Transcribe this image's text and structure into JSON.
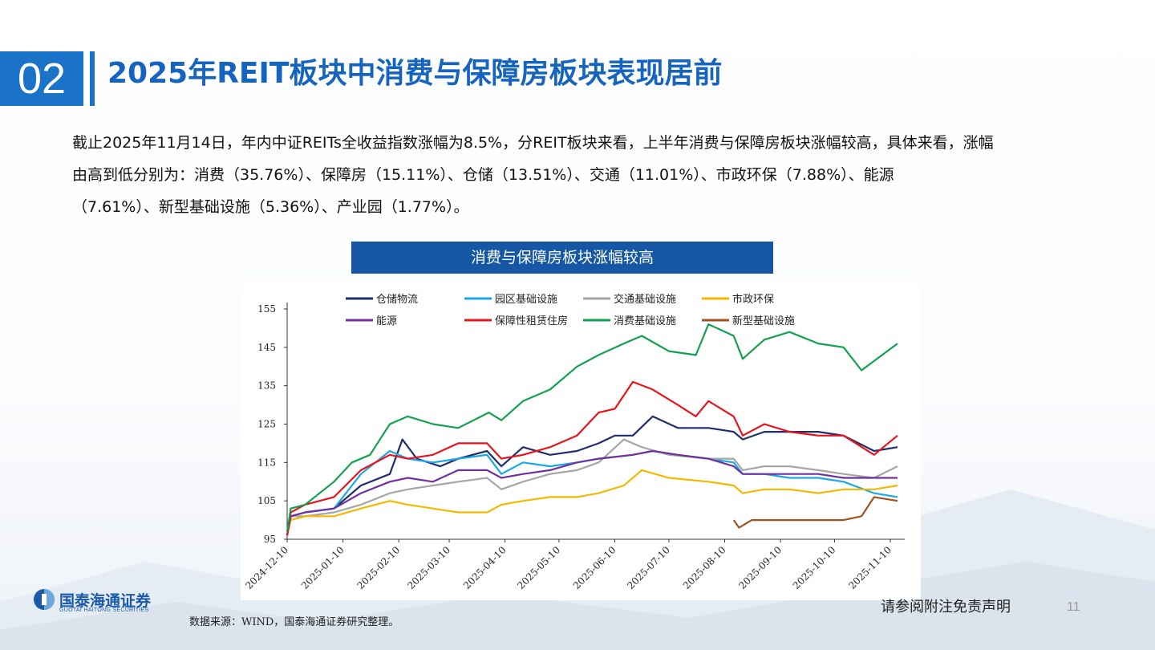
{
  "header": {
    "section_number": "02",
    "title": "2025年REIT板块中消费与保障房板块表现居前"
  },
  "paragraph": {
    "line1": "截止2025年11月14日，年内中证REITs全收益指数涨幅为8.5%，分REIT板块来看，上半年消费与保障房板块涨幅较高，具体来看，涨幅",
    "line2": "由高到低分别为：消费（35.76%）、保障房（15.11%）、仓储（13.51%）、交通（11.01%）、市政环保（7.88%）、能源",
    "line3": "（7.61%）、新型基础设施（5.36%）、产业园（1.77%）。"
  },
  "chart_banner": "消费与保障房板块涨幅较高",
  "footer": {
    "source": "数据来源：WIND，国泰海通证券研究整理。",
    "disclaimer": "请参阅附注免责声明",
    "page_number": "11",
    "logo_name": "国泰海通证券",
    "logo_sub": "GUOTAI HAITONG SECURITIES"
  },
  "colors": {
    "brand_blue": "#1a73c8",
    "title_blue": "#1565c0",
    "banner_blue": "#1557a5"
  },
  "chart_data": {
    "type": "line",
    "ylim": [
      95,
      155
    ],
    "yticks": [
      95,
      105,
      115,
      125,
      135,
      145,
      155
    ],
    "xlim": [
      "2024-12-10",
      "2025-11-18"
    ],
    "xticks": [
      "2024-12-10",
      "2025-01-10",
      "2025-02-10",
      "2025-03-10",
      "2025-04-10",
      "2025-05-10",
      "2025-06-10",
      "2025-07-10",
      "2025-08-10",
      "2025-09-10",
      "2025-10-10",
      "2025-11-10"
    ],
    "legend_position": "top",
    "grid": false,
    "series": [
      {
        "name": "仓储物流",
        "color": "#1f2d6b",
        "x": [
          "2024-12-10",
          "2024-12-12",
          "2024-12-20",
          "2025-01-05",
          "2025-01-20",
          "2025-02-05",
          "2025-02-12",
          "2025-02-20",
          "2025-03-05",
          "2025-03-15",
          "2025-03-31",
          "2025-04-08",
          "2025-04-20",
          "2025-05-05",
          "2025-05-20",
          "2025-06-01",
          "2025-06-10",
          "2025-06-20",
          "2025-07-01",
          "2025-07-15",
          "2025-08-01",
          "2025-08-15",
          "2025-08-20",
          "2025-09-01",
          "2025-09-15",
          "2025-10-01",
          "2025-10-15",
          "2025-11-01",
          "2025-11-14"
        ],
        "values": [
          96,
          101,
          102,
          103,
          109,
          112,
          121,
          116,
          114,
          116,
          118,
          114,
          119,
          117,
          118,
          120,
          122,
          122,
          127,
          124,
          124,
          123,
          121,
          123,
          123,
          123,
          122,
          118,
          119
        ]
      },
      {
        "name": "园区基础设施",
        "color": "#1aa7e8",
        "x": [
          "2024-12-10",
          "2024-12-12",
          "2024-12-20",
          "2025-01-05",
          "2025-01-20",
          "2025-02-05",
          "2025-02-15",
          "2025-03-01",
          "2025-03-15",
          "2025-03-31",
          "2025-04-08",
          "2025-04-20",
          "2025-05-05",
          "2025-05-20",
          "2025-06-01",
          "2025-06-20",
          "2025-07-01",
          "2025-07-15",
          "2025-08-01",
          "2025-08-15",
          "2025-08-20",
          "2025-09-01",
          "2025-09-15",
          "2025-10-01",
          "2025-10-15",
          "2025-11-01",
          "2025-11-14"
        ],
        "values": [
          96,
          101,
          102,
          103,
          112,
          118,
          116,
          115,
          116,
          117,
          112,
          115,
          114,
          115,
          116,
          117,
          118,
          117,
          116,
          115,
          112,
          112,
          111,
          111,
          110,
          107,
          106
        ]
      },
      {
        "name": "交通基础设施",
        "color": "#a6a6a6",
        "x": [
          "2024-12-10",
          "2024-12-12",
          "2024-12-20",
          "2025-01-05",
          "2025-01-20",
          "2025-02-05",
          "2025-02-15",
          "2025-03-01",
          "2025-03-15",
          "2025-03-31",
          "2025-04-08",
          "2025-04-20",
          "2025-05-05",
          "2025-05-20",
          "2025-06-01",
          "2025-06-15",
          "2025-06-25",
          "2025-07-10",
          "2025-08-01",
          "2025-08-15",
          "2025-08-20",
          "2025-09-01",
          "2025-09-15",
          "2025-10-01",
          "2025-10-15",
          "2025-11-01",
          "2025-11-14"
        ],
        "values": [
          96,
          101,
          101,
          102,
          104,
          107,
          108,
          109,
          110,
          111,
          108,
          110,
          112,
          113,
          115,
          121,
          119,
          117,
          116,
          116,
          113,
          114,
          114,
          113,
          112,
          111,
          114
        ]
      },
      {
        "name": "市政环保",
        "color": "#f5b800",
        "x": [
          "2024-12-10",
          "2024-12-12",
          "2024-12-20",
          "2025-01-05",
          "2025-01-20",
          "2025-02-05",
          "2025-02-15",
          "2025-03-01",
          "2025-03-15",
          "2025-03-31",
          "2025-04-08",
          "2025-04-20",
          "2025-05-05",
          "2025-05-20",
          "2025-06-01",
          "2025-06-15",
          "2025-06-25",
          "2025-07-10",
          "2025-08-01",
          "2025-08-15",
          "2025-08-20",
          "2025-09-01",
          "2025-09-15",
          "2025-10-01",
          "2025-10-15",
          "2025-11-01",
          "2025-11-14"
        ],
        "values": [
          96,
          100,
          101,
          101,
          103,
          105,
          104,
          103,
          102,
          102,
          104,
          105,
          106,
          106,
          107,
          109,
          113,
          111,
          110,
          109,
          107,
          108,
          108,
          107,
          108,
          108,
          109
        ]
      },
      {
        "name": "能源",
        "color": "#7030a0",
        "x": [
          "2024-12-10",
          "2024-12-12",
          "2024-12-20",
          "2025-01-05",
          "2025-01-20",
          "2025-02-05",
          "2025-02-15",
          "2025-03-01",
          "2025-03-15",
          "2025-03-31",
          "2025-04-08",
          "2025-04-20",
          "2025-05-05",
          "2025-05-20",
          "2025-06-01",
          "2025-06-20",
          "2025-07-01",
          "2025-07-15",
          "2025-08-01",
          "2025-08-15",
          "2025-08-20",
          "2025-09-01",
          "2025-09-15",
          "2025-10-01",
          "2025-10-15",
          "2025-11-01",
          "2025-11-14"
        ],
        "values": [
          96,
          101,
          102,
          103,
          107,
          110,
          111,
          110,
          113,
          113,
          111,
          112,
          113,
          115,
          116,
          117,
          118,
          117,
          116,
          114,
          112,
          112,
          112,
          112,
          111,
          111,
          111
        ]
      },
      {
        "name": "保障性租赁住房",
        "color": "#e8141c",
        "x": [
          "2024-12-10",
          "2024-12-12",
          "2024-12-20",
          "2025-01-05",
          "2025-01-20",
          "2025-02-05",
          "2025-02-15",
          "2025-03-01",
          "2025-03-15",
          "2025-03-31",
          "2025-04-08",
          "2025-04-20",
          "2025-05-05",
          "2025-05-20",
          "2025-06-01",
          "2025-06-10",
          "2025-06-20",
          "2025-07-01",
          "2025-07-15",
          "2025-07-25",
          "2025-08-01",
          "2025-08-15",
          "2025-08-20",
          "2025-09-01",
          "2025-09-15",
          "2025-10-01",
          "2025-10-15",
          "2025-11-01",
          "2025-11-14"
        ],
        "values": [
          96,
          102,
          104,
          106,
          113,
          117,
          116,
          117,
          120,
          120,
          116,
          117,
          119,
          122,
          128,
          129,
          136,
          134,
          130,
          127,
          131,
          127,
          122,
          125,
          123,
          122,
          122,
          117,
          122
        ]
      },
      {
        "name": "消费基础设施",
        "color": "#12a150",
        "x": [
          "2024-12-10",
          "2024-12-12",
          "2024-12-20",
          "2025-01-05",
          "2025-01-15",
          "2025-01-25",
          "2025-02-05",
          "2025-02-15",
          "2025-03-01",
          "2025-03-15",
          "2025-04-01",
          "2025-04-08",
          "2025-04-20",
          "2025-05-05",
          "2025-05-20",
          "2025-06-01",
          "2025-06-15",
          "2025-06-25",
          "2025-07-10",
          "2025-07-25",
          "2025-08-01",
          "2025-08-15",
          "2025-08-20",
          "2025-09-01",
          "2025-09-15",
          "2025-10-01",
          "2025-10-15",
          "2025-10-25",
          "2025-11-14"
        ],
        "values": [
          97,
          103,
          104,
          110,
          115,
          117,
          125,
          127,
          125,
          124,
          128,
          126,
          131,
          134,
          140,
          143,
          146,
          148,
          144,
          143,
          151,
          148,
          142,
          147,
          149,
          146,
          145,
          139,
          146
        ]
      },
      {
        "name": "新型基础设施",
        "color": "#a0521e",
        "x": [
          "2025-08-15",
          "2025-08-18",
          "2025-08-25",
          "2025-09-05",
          "2025-09-15",
          "2025-10-01",
          "2025-10-15",
          "2025-10-25",
          "2025-11-01",
          "2025-11-14"
        ],
        "values": [
          100,
          98,
          100,
          100,
          100,
          100,
          100,
          101,
          106,
          105
        ]
      }
    ]
  }
}
